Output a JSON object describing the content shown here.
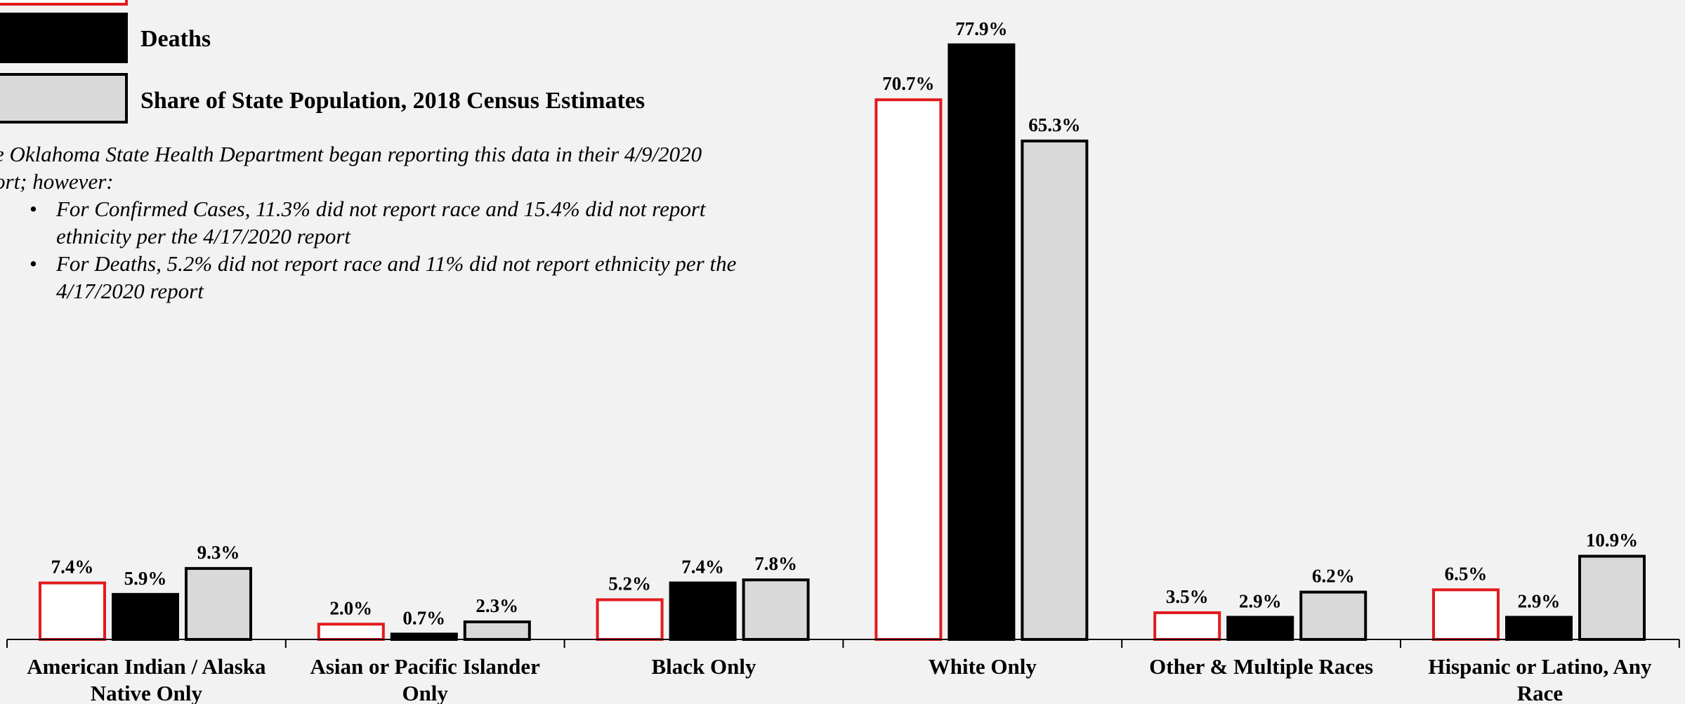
{
  "chart_data": {
    "type": "bar",
    "categories": [
      [
        "American Indian / Alaska",
        "Native Only"
      ],
      [
        "Asian or Pacific Islander",
        "Only"
      ],
      [
        "Black Only"
      ],
      [
        "White Only"
      ],
      [
        "Other & Multiple Races"
      ],
      [
        "Hispanic or Latino, Any",
        "Race"
      ]
    ],
    "series": [
      {
        "name": "",
        "values": [
          7.4,
          2.0,
          5.2,
          70.7,
          3.5,
          6.5
        ],
        "labels": [
          "7.4%",
          "2.0%",
          "5.2%",
          "70.7%",
          "3.5%",
          "6.5%"
        ],
        "fill": "#ffffff",
        "stroke": "#e31a1c"
      },
      {
        "name": "Deaths",
        "values": [
          5.9,
          0.7,
          7.4,
          77.9,
          2.9,
          2.9
        ],
        "labels": [
          "5.9%",
          "0.7%",
          "7.4%",
          "77.9%",
          "2.9%",
          "2.9%"
        ],
        "fill": "#000000",
        "stroke": "#000000"
      },
      {
        "name": "Share of State Population, 2018 Census Estimates",
        "values": [
          9.3,
          2.3,
          7.8,
          65.3,
          6.2,
          10.9
        ],
        "labels": [
          "9.3%",
          "2.3%",
          "7.8%",
          "65.3%",
          "6.2%",
          "10.9%"
        ],
        "fill": "#d9d9d9",
        "stroke": "#000000"
      }
    ],
    "ylim": [
      0,
      80
    ],
    "grid": false,
    "legend_placement": "top-left"
  },
  "note": {
    "intro": "e Oklahoma State Health Department began reporting this data in their 4/9/2020 ort; however:",
    "bullets": [
      "For Confirmed Cases, 11.3% did not report race and 15.4% did not report ethnicity per the 4/17/2020 report",
      "For Deaths, 5.2% did not report race and 11% did not report ethnicity per the 4/17/2020 report"
    ],
    "bullet_char": "•"
  }
}
